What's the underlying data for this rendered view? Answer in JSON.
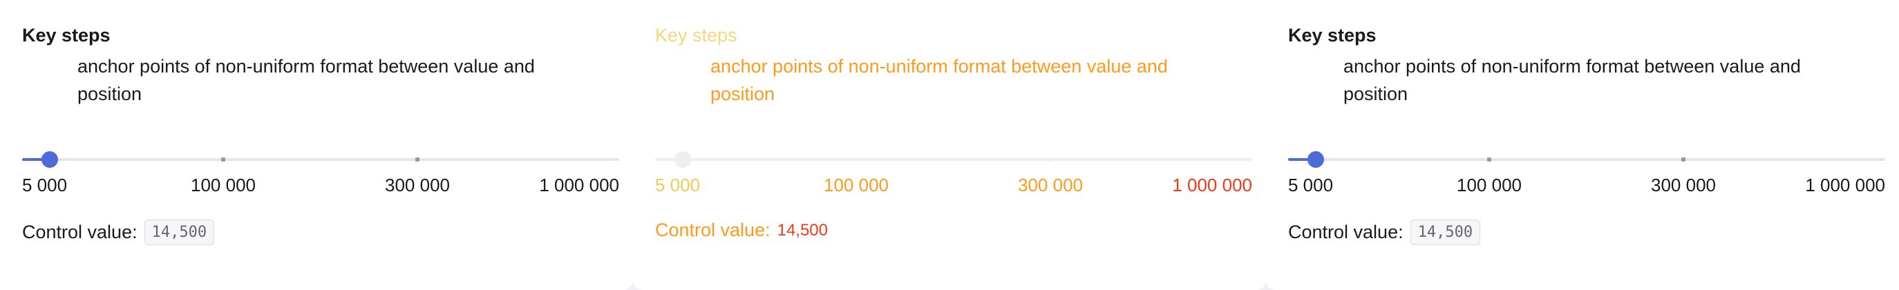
{
  "panels": [
    {
      "title": "Key steps",
      "description": "anchor points of non-uniform format between value and position",
      "slider": {
        "min": 5000,
        "max": 1000000,
        "value": 14500,
        "steps": [
          5000,
          100000,
          300000,
          1000000
        ],
        "labels": [
          "5 000",
          "100 000",
          "300 000",
          "1 000 000"
        ]
      },
      "control_label": "Control value:",
      "control_value": "14,500"
    },
    {
      "title": "Key steps",
      "description": "anchor points of non-uniform format between value and position",
      "slider": {
        "labels": [
          "5 000",
          "100 000",
          "300 000",
          "1 000 000"
        ]
      },
      "control_label": "Control value:",
      "control_value": "14,500"
    },
    {
      "title": "Key steps",
      "description": "anchor points of non-uniform format between value and position",
      "slider": {
        "min": 5000,
        "max": 1000000,
        "value": 14500,
        "steps": [
          5000,
          100000,
          300000,
          1000000
        ],
        "labels": [
          "5 000",
          "100 000",
          "300 000",
          "1 000 000"
        ]
      },
      "control_label": "Control value:",
      "control_value": "14,500"
    }
  ],
  "colors": {
    "accent": "#4f6bd8",
    "glitch_orange": "#ff9a1a",
    "glitch_red": "#f03a17"
  }
}
